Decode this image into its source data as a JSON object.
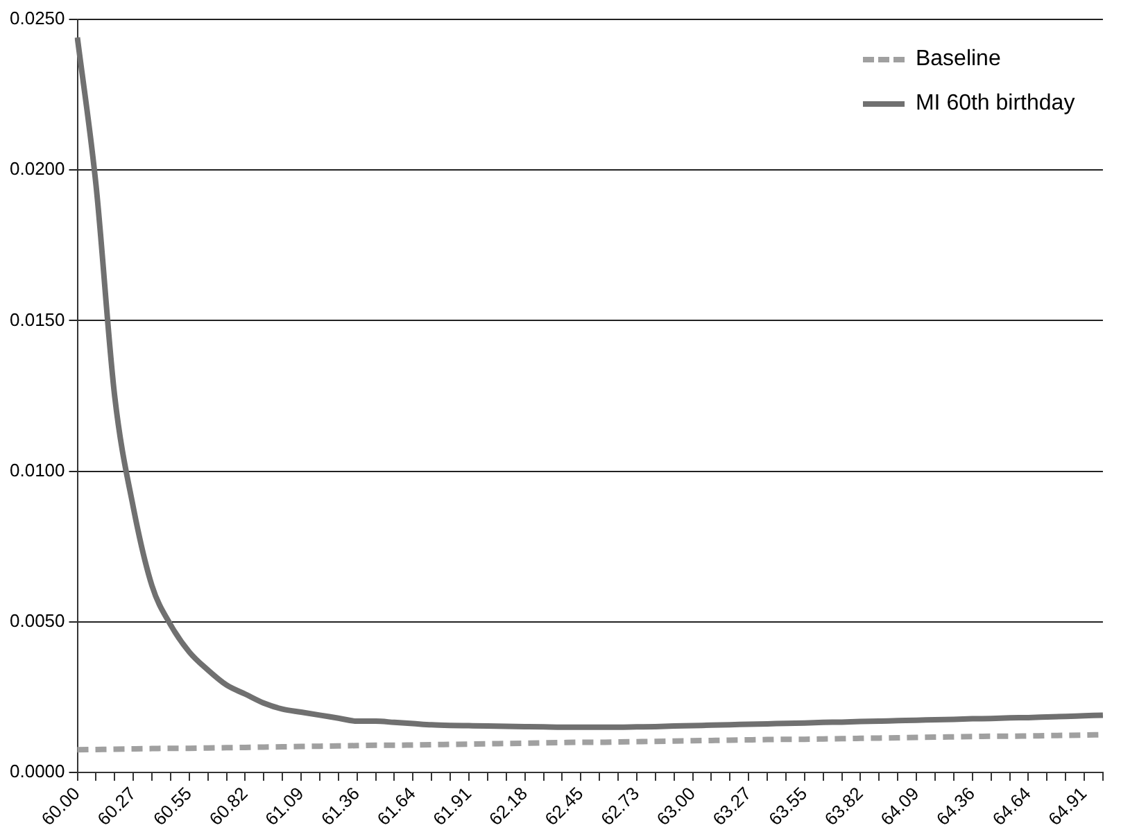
{
  "chart_data": {
    "type": "line",
    "categories": [
      "60.00",
      null,
      null,
      "60.27",
      null,
      null,
      "60.55",
      null,
      null,
      "60.82",
      null,
      null,
      "61.09",
      null,
      null,
      "61.36",
      null,
      null,
      "61.64",
      null,
      null,
      "61.91",
      null,
      null,
      "62.18",
      null,
      null,
      "62.45",
      null,
      null,
      "62.73",
      null,
      null,
      "63.00",
      null,
      null,
      "63.27",
      null,
      null,
      "63.55",
      null,
      null,
      "63.82",
      null,
      null,
      "64.09",
      null,
      null,
      "64.36",
      null,
      null,
      "64.64",
      null,
      null,
      "64.91",
      null
    ],
    "series": [
      {
        "name": "Baseline",
        "color": "#a0a0a0",
        "line_style": "dashed",
        "values": [
          0.00075,
          0.00076,
          0.00077,
          0.00078,
          0.00079,
          0.0008,
          0.0008,
          0.00081,
          0.00082,
          0.00083,
          0.00084,
          0.00085,
          0.00086,
          0.00087,
          0.00088,
          0.00089,
          0.0009,
          0.0009,
          0.00091,
          0.00092,
          0.00093,
          0.00094,
          0.00095,
          0.00096,
          0.00097,
          0.00098,
          0.00099,
          0.001,
          0.001,
          0.00101,
          0.00102,
          0.00103,
          0.00104,
          0.00105,
          0.00106,
          0.00107,
          0.00108,
          0.00109,
          0.0011,
          0.0011,
          0.00111,
          0.00112,
          0.00113,
          0.00114,
          0.00115,
          0.00116,
          0.00117,
          0.00118,
          0.00119,
          0.0012,
          0.0012,
          0.00121,
          0.00122,
          0.00123,
          0.00124,
          0.00125
        ]
      },
      {
        "name": "MI 60th birthday",
        "color": "#707070",
        "line_style": "solid",
        "values": [
          0.0244,
          0.0195,
          0.0125,
          0.0088,
          0.0062,
          0.0049,
          0.004,
          0.0034,
          0.0029,
          0.0026,
          0.0023,
          0.0021,
          0.002,
          0.0019,
          0.0018,
          0.0017,
          0.0017,
          0.00166,
          0.00162,
          0.00158,
          0.00156,
          0.00155,
          0.00154,
          0.00153,
          0.00152,
          0.00151,
          0.0015,
          0.0015,
          0.0015,
          0.0015,
          0.00151,
          0.00152,
          0.00154,
          0.00155,
          0.00157,
          0.00158,
          0.0016,
          0.00161,
          0.00163,
          0.00164,
          0.00166,
          0.00167,
          0.00169,
          0.0017,
          0.00172,
          0.00173,
          0.00175,
          0.00176,
          0.00178,
          0.00179,
          0.00181,
          0.00182,
          0.00184,
          0.00186,
          0.00188,
          0.0019
        ]
      }
    ],
    "ylim": [
      0,
      0.025
    ],
    "yticks": [
      {
        "value": 0,
        "label": "0.0000"
      },
      {
        "value": 0.005,
        "label": "0.0050"
      },
      {
        "value": 0.01,
        "label": "0.0100"
      },
      {
        "value": 0.015,
        "label": "0.0150"
      },
      {
        "value": 0.02,
        "label": "0.0200"
      },
      {
        "value": 0.025,
        "label": "0.0250"
      }
    ],
    "grid": "y",
    "legend": "top right",
    "marker": "none"
  }
}
